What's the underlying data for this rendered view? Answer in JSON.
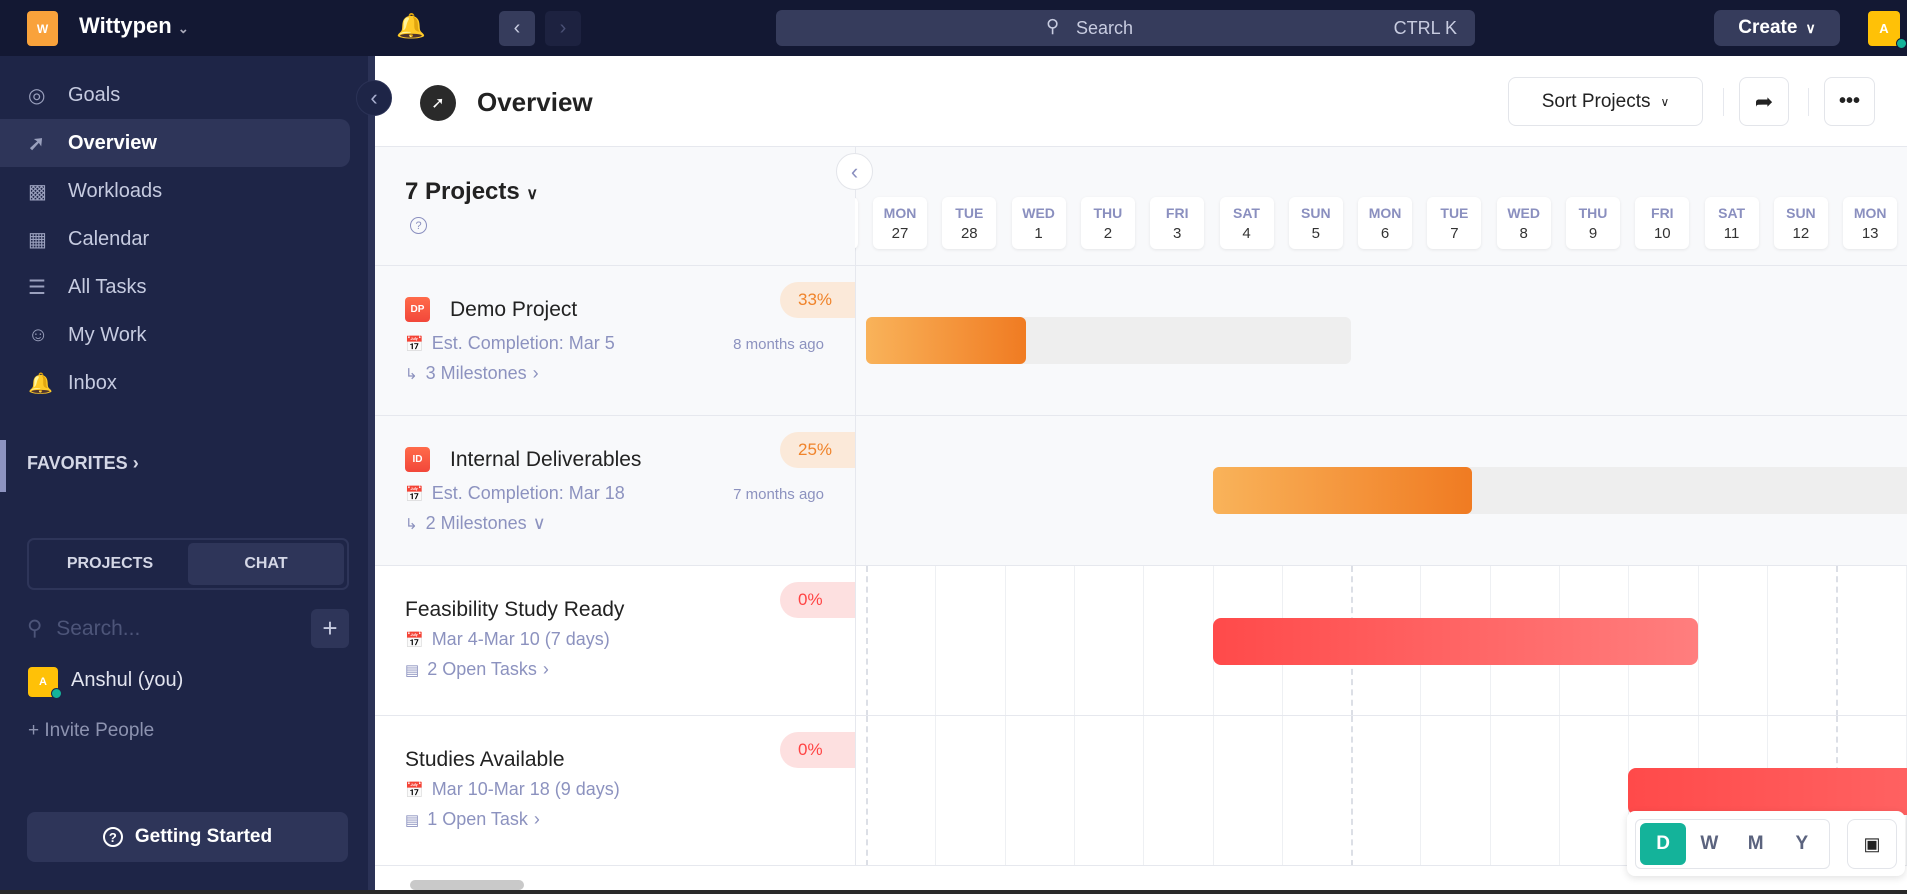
{
  "topbar": {
    "logo_letter": "W",
    "workspace": "Wittypen",
    "search_placeholder": "Search",
    "search_shortcut": "CTRL K",
    "create_label": "Create",
    "avatar_letter": "A"
  },
  "sidebar": {
    "items": [
      {
        "label": "Goals",
        "icon": "goals-icon"
      },
      {
        "label": "Overview",
        "icon": "compass-icon",
        "active": true
      },
      {
        "label": "Workloads",
        "icon": "bar-chart-icon"
      },
      {
        "label": "Calendar",
        "icon": "calendar-icon"
      },
      {
        "label": "All Tasks",
        "icon": "checklist-icon"
      },
      {
        "label": "My Work",
        "icon": "user-check-icon"
      },
      {
        "label": "Inbox",
        "icon": "bell-icon"
      }
    ],
    "favorites": "FAVORITES",
    "tabs": [
      "PROJECTS",
      "CHAT"
    ],
    "active_tab": "CHAT",
    "search_placeholder": "Search...",
    "user": "Anshul (you)",
    "user_initial": "A",
    "invite": "+ Invite People",
    "getting_started": "Getting Started"
  },
  "header": {
    "title": "Overview",
    "sort_label": "Sort Projects"
  },
  "gantt": {
    "projects_count": "7 Projects",
    "days": [
      {
        "d": "MON",
        "n": "27"
      },
      {
        "d": "TUE",
        "n": "28"
      },
      {
        "d": "WED",
        "n": "1"
      },
      {
        "d": "THU",
        "n": "2"
      },
      {
        "d": "FRI",
        "n": "3"
      },
      {
        "d": "SAT",
        "n": "4"
      },
      {
        "d": "SUN",
        "n": "5"
      },
      {
        "d": "MON",
        "n": "6"
      },
      {
        "d": "TUE",
        "n": "7"
      },
      {
        "d": "WED",
        "n": "8"
      },
      {
        "d": "THU",
        "n": "9"
      },
      {
        "d": "FRI",
        "n": "10"
      },
      {
        "d": "SAT",
        "n": "11"
      },
      {
        "d": "SUN",
        "n": "12"
      },
      {
        "d": "MON",
        "n": "13"
      }
    ],
    "rows": [
      {
        "type": "project",
        "badge": "DP",
        "name": "Demo Project",
        "line1": "Est. Completion: Mar 5",
        "line2": "3 Milestones",
        "ago": "8 months ago",
        "percent": "33%",
        "progress": 0.33,
        "start_day": 0,
        "end_day": 6
      },
      {
        "type": "project",
        "badge": "ID",
        "name": "Internal Deliverables",
        "line1": "Est. Completion: Mar 18",
        "line2": "2 Milestones",
        "ago": "7 months ago",
        "percent": "25%",
        "progress": 0.25,
        "start_day": 5,
        "end_day": 19
      },
      {
        "type": "milestone",
        "name": "Feasibility Study Ready",
        "line1": "Mar 4-Mar 10 (7 days)",
        "line2": "2 Open Tasks",
        "percent": "0%",
        "progress": 0,
        "start_day": 5,
        "end_day": 11
      },
      {
        "type": "milestone",
        "name": "Studies Available",
        "line1": "Mar 10-Mar 18 (9 days)",
        "line2": "1 Open Task",
        "percent": "0%",
        "progress": 0,
        "start_day": 11,
        "end_day": 19
      }
    ],
    "views": [
      "D",
      "W",
      "M",
      "Y"
    ],
    "active_view": "D"
  },
  "colors": {
    "accent": "#14b39a",
    "orange": "#f0832a",
    "red": "#ff4a4a",
    "sidebar": "#1e2547",
    "topbar": "#131833"
  }
}
